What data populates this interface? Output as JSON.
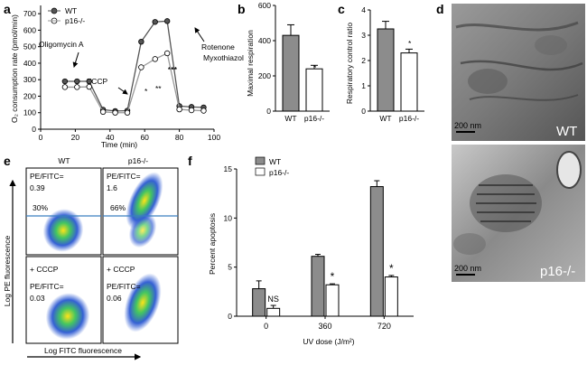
{
  "panel_letters": [
    "a",
    "b",
    "c",
    "d",
    "e",
    "f"
  ],
  "colors": {
    "wt": "#8c8c8c",
    "ko": "#ffffff",
    "line_ko": "#9a9a9a",
    "gate": "#3a7fc1",
    "text": "#000000"
  },
  "chart_data": [
    {
      "id": "a",
      "type": "line",
      "xlabel": "Time (min)",
      "ylabel": "O₂ consumption rate (pmol/min)",
      "xlim": [
        0,
        100
      ],
      "ylim": [
        0,
        750
      ],
      "xticks": [
        0,
        20,
        40,
        60,
        80,
        100
      ],
      "yticks": [
        0,
        100,
        200,
        300,
        400,
        500,
        600,
        700
      ],
      "legend": [
        "WT",
        "p16-/-"
      ],
      "series": [
        {
          "name": "WT",
          "x": [
            14,
            21,
            28,
            36,
            43,
            50,
            58,
            66,
            73,
            80,
            87,
            94
          ],
          "y": [
            290,
            290,
            290,
            118,
            110,
            112,
            530,
            650,
            655,
            140,
            135,
            132
          ]
        },
        {
          "name": "p16-/-",
          "x": [
            14,
            21,
            28,
            36,
            43,
            50,
            58,
            66,
            73,
            80,
            87,
            94
          ],
          "y": [
            255,
            255,
            257,
            105,
            100,
            100,
            375,
            425,
            460,
            120,
            115,
            112
          ]
        }
      ],
      "annotations": [
        "Oligomycin A",
        "FCCP",
        "Rotenone",
        "Myxothiazol"
      ],
      "significance": [
        "*",
        "**",
        "***"
      ]
    },
    {
      "id": "b",
      "type": "bar",
      "ylabel": "Maximal respiration",
      "ylim": [
        0,
        600
      ],
      "yticks": [
        0,
        200,
        400,
        600
      ],
      "categories": [
        "WT",
        "p16-/-"
      ],
      "values": [
        430,
        240
      ],
      "errors": [
        60,
        20
      ],
      "significance": "*"
    },
    {
      "id": "c",
      "type": "bar",
      "ylabel": "Respiratory control ratio",
      "ylim": [
        0,
        4
      ],
      "yticks": [
        0,
        1,
        2,
        3,
        4
      ],
      "categories": [
        "WT",
        "p16-/-"
      ],
      "values": [
        3.25,
        2.3
      ],
      "errors": [
        0.3,
        0.15
      ],
      "significance": "*"
    },
    {
      "id": "f",
      "type": "bar",
      "xlabel": "UV dose (J/m²)",
      "ylabel": "Percent apoptosis",
      "ylim": [
        0,
        15
      ],
      "yticks": [
        0,
        5,
        10,
        15
      ],
      "categories": [
        "0",
        "360",
        "720"
      ],
      "legend": [
        "WT",
        "p16-/-"
      ],
      "series": [
        {
          "name": "WT",
          "values": [
            2.8,
            6.1,
            13.2
          ],
          "errors": [
            0.8,
            0.2,
            0.6
          ]
        },
        {
          "name": "p16-/-",
          "values": [
            0.8,
            3.2,
            4.0
          ],
          "errors": [
            0.3,
            0.1,
            0.15
          ]
        }
      ],
      "significance": [
        "NS",
        "*",
        "*"
      ]
    }
  ],
  "panel_d": {
    "top_label": "WT",
    "bottom_label": "p16-/-",
    "scale": "200 nm"
  },
  "panel_e": {
    "col_headers": [
      "WT",
      "p16-/-"
    ],
    "cells": [
      {
        "ratio_label": "PE/FITC=",
        "ratio": "0.39",
        "percent": "30%",
        "treatment": ""
      },
      {
        "ratio_label": "PE/FITC=",
        "ratio": "1.6",
        "percent": "66%",
        "treatment": ""
      },
      {
        "ratio_label": "PE/FITC=",
        "ratio": "0.03",
        "percent": "",
        "treatment": "+ CCCP"
      },
      {
        "ratio_label": "PE/FITC=",
        "ratio": "0.06",
        "percent": "",
        "treatment": "+ CCCP"
      }
    ],
    "ylabel": "Log PE fluorescence",
    "xlabel": "Log FITC fluorescence"
  }
}
